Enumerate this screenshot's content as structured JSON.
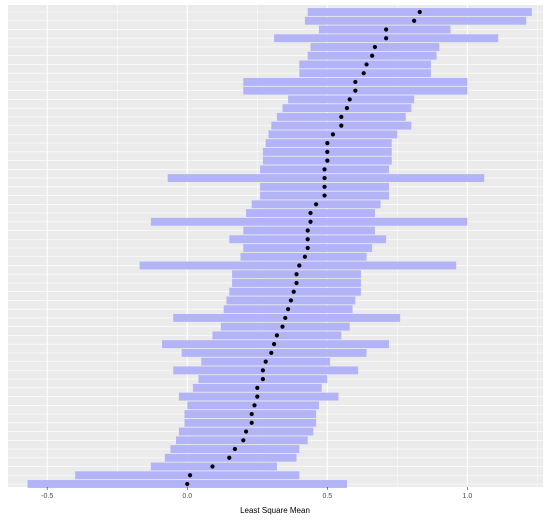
{
  "chart_data": {
    "type": "interval-dot",
    "title": "",
    "xlabel": "Least Square Mean",
    "ylabel": "",
    "xlim": [
      -0.64,
      1.27
    ],
    "x_ticks": [
      -0.5,
      0.0,
      0.5,
      1.0
    ],
    "x_tick_labels": [
      "-0.5",
      "0.0",
      "0.5",
      "1.0"
    ],
    "grid": true,
    "legend": "none",
    "colors": {
      "panel_background": "#ebebeb",
      "grid_line": "#ffffff",
      "interval_fill": "#b3b3f7",
      "point": "#000000",
      "axis_text": "#4d4d4d",
      "axis_title": "#000000"
    },
    "rows": [
      {
        "mean": 0.83,
        "lower": 0.43,
        "upper": 1.23
      },
      {
        "mean": 0.81,
        "lower": 0.42,
        "upper": 1.21
      },
      {
        "mean": 0.71,
        "lower": 0.47,
        "upper": 0.94
      },
      {
        "mean": 0.71,
        "lower": 0.31,
        "upper": 1.11
      },
      {
        "mean": 0.67,
        "lower": 0.44,
        "upper": 0.9
      },
      {
        "mean": 0.66,
        "lower": 0.43,
        "upper": 0.89
      },
      {
        "mean": 0.64,
        "lower": 0.4,
        "upper": 0.87
      },
      {
        "mean": 0.63,
        "lower": 0.4,
        "upper": 0.87
      },
      {
        "mean": 0.6,
        "lower": 0.2,
        "upper": 1.0
      },
      {
        "mean": 0.6,
        "lower": 0.2,
        "upper": 1.0
      },
      {
        "mean": 0.58,
        "lower": 0.36,
        "upper": 0.81
      },
      {
        "mean": 0.57,
        "lower": 0.34,
        "upper": 0.8
      },
      {
        "mean": 0.55,
        "lower": 0.32,
        "upper": 0.78
      },
      {
        "mean": 0.55,
        "lower": 0.3,
        "upper": 0.8
      },
      {
        "mean": 0.52,
        "lower": 0.29,
        "upper": 0.75
      },
      {
        "mean": 0.5,
        "lower": 0.28,
        "upper": 0.73
      },
      {
        "mean": 0.5,
        "lower": 0.27,
        "upper": 0.73
      },
      {
        "mean": 0.5,
        "lower": 0.27,
        "upper": 0.73
      },
      {
        "mean": 0.49,
        "lower": 0.26,
        "upper": 0.72
      },
      {
        "mean": 0.49,
        "lower": -0.07,
        "upper": 1.06
      },
      {
        "mean": 0.49,
        "lower": 0.26,
        "upper": 0.72
      },
      {
        "mean": 0.49,
        "lower": 0.26,
        "upper": 0.72
      },
      {
        "mean": 0.46,
        "lower": 0.23,
        "upper": 0.69
      },
      {
        "mean": 0.44,
        "lower": 0.21,
        "upper": 0.67
      },
      {
        "mean": 0.44,
        "lower": -0.13,
        "upper": 1.0
      },
      {
        "mean": 0.43,
        "lower": 0.2,
        "upper": 0.67
      },
      {
        "mean": 0.43,
        "lower": 0.15,
        "upper": 0.71
      },
      {
        "mean": 0.43,
        "lower": 0.2,
        "upper": 0.66
      },
      {
        "mean": 0.42,
        "lower": 0.19,
        "upper": 0.64
      },
      {
        "mean": 0.4,
        "lower": -0.17,
        "upper": 0.96
      },
      {
        "mean": 0.39,
        "lower": 0.16,
        "upper": 0.62
      },
      {
        "mean": 0.39,
        "lower": 0.16,
        "upper": 0.62
      },
      {
        "mean": 0.38,
        "lower": 0.15,
        "upper": 0.62
      },
      {
        "mean": 0.37,
        "lower": 0.14,
        "upper": 0.6
      },
      {
        "mean": 0.36,
        "lower": 0.13,
        "upper": 0.59
      },
      {
        "mean": 0.35,
        "lower": -0.05,
        "upper": 0.76
      },
      {
        "mean": 0.34,
        "lower": 0.12,
        "upper": 0.58
      },
      {
        "mean": 0.32,
        "lower": 0.09,
        "upper": 0.55
      },
      {
        "mean": 0.31,
        "lower": -0.09,
        "upper": 0.72
      },
      {
        "mean": 0.3,
        "lower": -0.02,
        "upper": 0.64
      },
      {
        "mean": 0.28,
        "lower": 0.05,
        "upper": 0.51
      },
      {
        "mean": 0.27,
        "lower": -0.05,
        "upper": 0.61
      },
      {
        "mean": 0.27,
        "lower": 0.04,
        "upper": 0.5
      },
      {
        "mean": 0.25,
        "lower": 0.02,
        "upper": 0.48
      },
      {
        "mean": 0.25,
        "lower": -0.03,
        "upper": 0.54
      },
      {
        "mean": 0.24,
        "lower": 0.0,
        "upper": 0.47
      },
      {
        "mean": 0.23,
        "lower": -0.01,
        "upper": 0.46
      },
      {
        "mean": 0.23,
        "lower": -0.01,
        "upper": 0.46
      },
      {
        "mean": 0.21,
        "lower": -0.03,
        "upper": 0.45
      },
      {
        "mean": 0.2,
        "lower": -0.04,
        "upper": 0.43
      },
      {
        "mean": 0.17,
        "lower": -0.06,
        "upper": 0.4
      },
      {
        "mean": 0.15,
        "lower": -0.08,
        "upper": 0.39
      },
      {
        "mean": 0.09,
        "lower": -0.13,
        "upper": 0.32
      },
      {
        "mean": 0.01,
        "lower": -0.4,
        "upper": 0.4
      },
      {
        "mean": 0.0,
        "lower": -0.57,
        "upper": 0.57
      }
    ]
  }
}
